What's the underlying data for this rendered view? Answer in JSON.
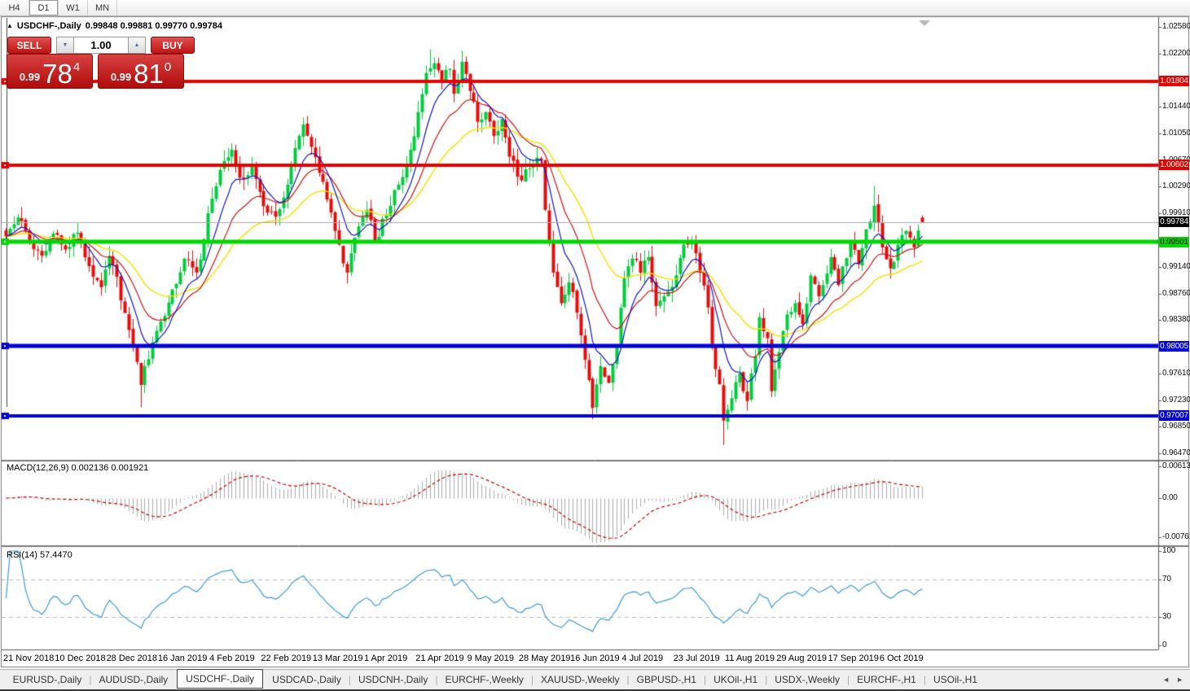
{
  "toolbar": {
    "timeframes": [
      {
        "label": "H4",
        "active": false
      },
      {
        "label": "D1",
        "active": true
      },
      {
        "label": "W1",
        "active": false
      },
      {
        "label": "MN",
        "active": false
      }
    ]
  },
  "chart": {
    "collapse_marker": "▲",
    "symbol_title": "USDCHF-,Daily",
    "ohlc_text": "0.99848 0.99881 0.99770 0.99784"
  },
  "trade_panel": {
    "sell_label": "SELL",
    "buy_label": "BUY",
    "volume": "1.00",
    "spin_down": "▼",
    "spin_up": "▲",
    "sell_price": {
      "prefix": "0.99",
      "big": "78",
      "sup": "4"
    },
    "buy_price": {
      "prefix": "0.99",
      "big": "81",
      "sup": "0"
    }
  },
  "chart_data": {
    "type": "candlestick",
    "symbol": "USDCHF",
    "timeframe": "Daily",
    "bars": 232,
    "seed": 42,
    "last_ohlc": {
      "open": 0.99848,
      "high": 0.99881,
      "low": 0.9977,
      "close": 0.99784
    },
    "current_price": 0.99784,
    "colors": {
      "up": "#00CC3C",
      "down": "#E60C0C",
      "ma_fast": "#1414C8",
      "ma_mid": "#CC1414",
      "ma_slow": "#F2E200",
      "macd_hist": "#ABABAB",
      "macd_signal": "#CC0000",
      "rsi_line": "#3E9BD6",
      "level_dash": "#BDBDBD",
      "current_line": "#ABABAB"
    },
    "ma_periods": {
      "fast": 8,
      "mid": 17,
      "slow": 34
    },
    "anchors": [
      [
        0,
        0.9958
      ],
      [
        3,
        0.9985
      ],
      [
        6,
        0.9952
      ],
      [
        9,
        0.993
      ],
      [
        12,
        0.9962
      ],
      [
        15,
        0.9939
      ],
      [
        18,
        0.9963
      ],
      [
        21,
        0.9915
      ],
      [
        24,
        0.9885
      ],
      [
        26,
        0.993
      ],
      [
        28,
        0.99
      ],
      [
        30,
        0.9848
      ],
      [
        32,
        0.98
      ],
      [
        34,
        0.9745
      ],
      [
        35,
        0.9772
      ],
      [
        37,
        0.9806
      ],
      [
        39,
        0.9836
      ],
      [
        42,
        0.9882
      ],
      [
        45,
        0.9926
      ],
      [
        48,
        0.9906
      ],
      [
        52,
        1.0012
      ],
      [
        55,
        1.0066
      ],
      [
        57,
        1.0082
      ],
      [
        59,
        1.0042
      ],
      [
        62,
        1.0058
      ],
      [
        65,
        1.0001
      ],
      [
        68,
        0.9986
      ],
      [
        71,
        1.0032
      ],
      [
        74,
        1.0102
      ],
      [
        75,
        1.0118
      ],
      [
        77,
        1.0086
      ],
      [
        78,
        1.0071
      ],
      [
        80,
        1.0036
      ],
      [
        82,
        0.9992
      ],
      [
        84,
        0.9946
      ],
      [
        86,
        0.9906
      ],
      [
        88,
        0.9956
      ],
      [
        91,
        0.9996
      ],
      [
        93,
        0.9952
      ],
      [
        96,
        0.9988
      ],
      [
        99,
        1.0032
      ],
      [
        102,
        1.0082
      ],
      [
        104,
        1.0136
      ],
      [
        106,
        1.0192
      ],
      [
        108,
        1.0206
      ],
      [
        110,
        1.0182
      ],
      [
        112,
        1.0198
      ],
      [
        113,
        1.0162
      ],
      [
        115,
        1.0208
      ],
      [
        117,
        1.0166
      ],
      [
        119,
        1.0122
      ],
      [
        121,
        1.0136
      ],
      [
        123,
        1.0102
      ],
      [
        125,
        1.0126
      ],
      [
        127,
        1.0072
      ],
      [
        130,
        1.0038
      ],
      [
        133,
        1.0062
      ],
      [
        135,
        1.0066
      ],
      [
        136,
        0.9996
      ],
      [
        138,
        0.9906
      ],
      [
        140,
        0.9862
      ],
      [
        142,
        0.9892
      ],
      [
        143,
        0.9878
      ],
      [
        145,
        0.9816
      ],
      [
        147,
        0.9752
      ],
      [
        148,
        0.9712
      ],
      [
        150,
        0.9772
      ],
      [
        152,
        0.9748
      ],
      [
        154,
        0.9802
      ],
      [
        156,
        0.9898
      ],
      [
        158,
        0.9926
      ],
      [
        160,
        0.9906
      ],
      [
        162,
        0.9928
      ],
      [
        164,
        0.9858
      ],
      [
        166,
        0.9872
      ],
      [
        169,
        0.9902
      ],
      [
        171,
        0.9946
      ],
      [
        173,
        0.9952
      ],
      [
        175,
        0.9906
      ],
      [
        177,
        0.9856
      ],
      [
        178,
        0.9802
      ],
      [
        180,
        0.9746
      ],
      [
        181,
        0.9694
      ],
      [
        183,
        0.9726
      ],
      [
        185,
        0.9762
      ],
      [
        187,
        0.9722
      ],
      [
        189,
        0.9786
      ],
      [
        190,
        0.9842
      ],
      [
        192,
        0.9812
      ],
      [
        193,
        0.9736
      ],
      [
        195,
        0.9792
      ],
      [
        197,
        0.9846
      ],
      [
        199,
        0.9862
      ],
      [
        201,
        0.9832
      ],
      [
        203,
        0.9902
      ],
      [
        205,
        0.9872
      ],
      [
        208,
        0.9928
      ],
      [
        210,
        0.9888
      ],
      [
        213,
        0.995
      ],
      [
        215,
        0.9918
      ],
      [
        217,
        0.9968
      ],
      [
        219,
        1.0002
      ],
      [
        221,
        0.9942
      ],
      [
        223,
        0.9912
      ],
      [
        225,
        0.9946
      ],
      [
        227,
        0.9966
      ],
      [
        229,
        0.9942
      ],
      [
        231,
        0.99784
      ]
    ],
    "wick_overrides": {
      "34": {
        "low": 0.9713
      },
      "75": {
        "high": 1.0128
      },
      "107": {
        "high": 1.0226
      },
      "115": {
        "high": 1.0224
      },
      "148": {
        "low": 0.9696
      },
      "181": {
        "low": 0.9659
      },
      "219": {
        "high": 1.003
      }
    },
    "price_axis": {
      "ticks": [
        {
          "label": "1.02580",
          "price": 1.0258
        },
        {
          "label": "1.02200",
          "price": 1.022
        },
        {
          "label": "1.01440",
          "price": 1.0144
        },
        {
          "label": "1.01050",
          "price": 1.0105
        },
        {
          "label": "1.00670",
          "price": 1.0067
        },
        {
          "label": "1.00290",
          "price": 1.0029
        },
        {
          "label": "0.99910",
          "price": 0.9991
        },
        {
          "label": "0.99140",
          "price": 0.9914
        },
        {
          "label": "0.98760",
          "price": 0.9876
        },
        {
          "label": "0.98380",
          "price": 0.9838
        },
        {
          "label": "0.97610",
          "price": 0.9761
        },
        {
          "label": "0.97230",
          "price": 0.9723
        },
        {
          "label": "0.96850",
          "price": 0.9685
        },
        {
          "label": "0.96470",
          "price": 0.9647
        }
      ],
      "badges": [
        {
          "label": "1.01804",
          "price": 1.01804,
          "bg": "#E60000",
          "fg": "#FFFFFF"
        },
        {
          "label": "1.00602",
          "price": 1.00602,
          "bg": "#E60000",
          "fg": "#FFFFFF"
        },
        {
          "label": "0.99784",
          "price": 0.99784,
          "bg": "#000000",
          "fg": "#FFFFFF"
        },
        {
          "label": "0.99501",
          "price": 0.99501,
          "bg": "#00D800",
          "fg": "#000000"
        },
        {
          "label": "0.98005",
          "price": 0.98005,
          "bg": "#0000D8",
          "fg": "#FFFFFF"
        },
        {
          "label": "0.97007",
          "price": 0.97007,
          "bg": "#0000D8",
          "fg": "#FFFFFF"
        }
      ]
    },
    "hlines": [
      {
        "price": 1.01804,
        "color": "#E60000",
        "width": 4
      },
      {
        "price": 1.00602,
        "color": "#E60000",
        "width": 4
      },
      {
        "price": 0.99501,
        "color": "#00D800",
        "width": 5
      },
      {
        "price": 0.98005,
        "color": "#0000D8",
        "width": 5
      },
      {
        "price": 0.97007,
        "color": "#0000D8",
        "width": 4
      }
    ],
    "date_labels": [
      "21 Nov 2018",
      "10 Dec 2018",
      "28 Dec 2018",
      "16 Jan 2019",
      "4 Feb 2019",
      "22 Feb 2019",
      "13 Mar 2019",
      "1 Apr 2019",
      "21 Apr 2019",
      "9 May 2019",
      "28 May 2019",
      "16 Jun 2019",
      "4 Jul 2019",
      "23 Jul 2019",
      "11 Aug 2019",
      "29 Aug 2019",
      "17 Sep 2019",
      "6 Oct 2019"
    ],
    "label_every_bars": 13,
    "macd": {
      "label": "MACD(12,26,9) 0.002136 0.001921",
      "params": [
        12,
        26,
        9
      ],
      "last_main": 0.002136,
      "last_signal": 0.001921,
      "axis": [
        {
          "label": "0.00613",
          "v": 0.00613
        },
        {
          "label": "0.00",
          "v": 0
        },
        {
          "label": "-0.007612",
          "v": -0.007612
        }
      ]
    },
    "rsi": {
      "label": "RSI(14) 57.4470",
      "period": 14,
      "last_value": 57.447,
      "levels": [
        70,
        30
      ],
      "axis": [
        {
          "label": "100",
          "v": 100
        },
        {
          "label": "70",
          "v": 70
        },
        {
          "label": "30",
          "v": 30
        },
        {
          "label": "0",
          "v": 0
        }
      ]
    }
  },
  "tabs": {
    "items": [
      {
        "label": "EURUSD-,Daily",
        "active": false
      },
      {
        "label": "AUDUSD-,Daily",
        "active": false
      },
      {
        "label": "USDCHF-,Daily",
        "active": true
      },
      {
        "label": "USDCAD-,Daily",
        "active": false
      },
      {
        "label": "USDCNH-,Daily",
        "active": false
      },
      {
        "label": "EURCHF-,Weekly",
        "active": false
      },
      {
        "label": "XAUUSD-,Weekly",
        "active": false
      },
      {
        "label": "GBPUSD-,H1",
        "active": false
      },
      {
        "label": "UKOil-,H1",
        "active": false
      },
      {
        "label": "USDX-,Weekly",
        "active": false
      },
      {
        "label": "EURCHF-,H1",
        "active": false
      },
      {
        "label": "USOil-,H1",
        "active": false
      }
    ],
    "scroll_left": "◄",
    "scroll_right": "►"
  }
}
